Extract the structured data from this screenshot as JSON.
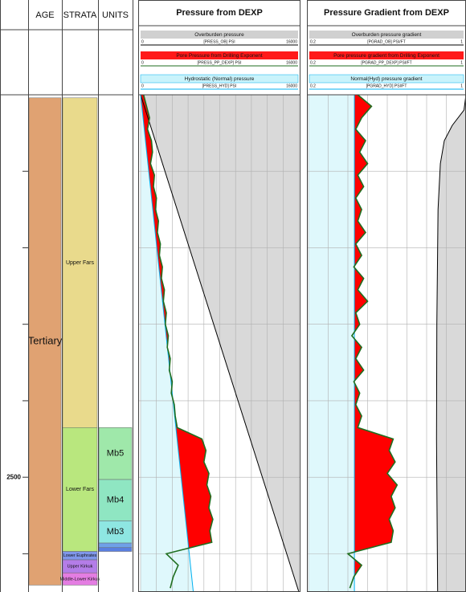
{
  "chart_data": {
    "type": "well-log",
    "ylim": [
      2000,
      2650
    ],
    "yticks": [
      {
        "value": 2100,
        "label": null
      },
      {
        "value": 2200,
        "label": null
      },
      {
        "value": 2300,
        "label": null
      },
      {
        "value": 2400,
        "label": null
      },
      {
        "value": 2500,
        "label": "2500"
      },
      {
        "value": 2600,
        "label": null
      }
    ],
    "age_title": "AGE",
    "strata_title": "STRATA",
    "units_title": "UNITS",
    "age": [
      {
        "name": "Tertiary",
        "top": 2004,
        "base": 2641,
        "color": "#e0a272"
      }
    ],
    "strata": [
      {
        "name": "Upper Fars",
        "top": 2004,
        "base": 2435,
        "color": "#e9da8c"
      },
      {
        "name": "Lower Fars",
        "top": 2435,
        "base": 2597,
        "color": "#b9e77e"
      },
      {
        "name": "Lower Euphrates",
        "top": 2597,
        "base": 2608,
        "color": "#7f96ea"
      },
      {
        "name": "Upper Kirkuk",
        "top": 2608,
        "base": 2625,
        "color": "#b47de8"
      },
      {
        "name": "Middle-Lower Kirkuk",
        "top": 2625,
        "base": 2641,
        "color": "#e47de2"
      }
    ],
    "units": [
      {
        "name": "Mb5",
        "top": 2435,
        "base": 2503,
        "color": "#9fe8aa"
      },
      {
        "name": "Mb4",
        "top": 2503,
        "base": 2557,
        "color": "#8fe6c2"
      },
      {
        "name": "Mb3",
        "top": 2557,
        "base": 2586,
        "color": "#8ee6e2"
      },
      {
        "name": null,
        "top": 2586,
        "base": 2592,
        "color": "#6fa0e8"
      },
      {
        "name": null,
        "top": 2592,
        "base": 2597,
        "color": "#5a7fe0"
      }
    ],
    "depths": [
      2000,
      2015,
      2030,
      2045,
      2060,
      2075,
      2090,
      2105,
      2120,
      2135,
      2150,
      2165,
      2180,
      2195,
      2210,
      2225,
      2240,
      2255,
      2270,
      2285,
      2300,
      2315,
      2330,
      2345,
      2360,
      2375,
      2390,
      2405,
      2420,
      2435,
      2450,
      2465,
      2480,
      2495,
      2510,
      2525,
      2540,
      2555,
      2570,
      2585,
      2600,
      2615,
      2630,
      2645
    ],
    "tracks": [
      {
        "title": "Pressure from DEXP",
        "xlim": [
          0,
          16000
        ],
        "xticks": [
          0,
          1600,
          3200,
          4800,
          6400,
          8000,
          9600,
          11200,
          12800,
          14400,
          16000
        ],
        "overburden": {
          "name": "Overburden pressure",
          "mnemonic": "[PRESS_OB] PSI",
          "color": "#000000",
          "fill": "#d9d9d9",
          "depths": [
            2000,
            2650
          ],
          "values": [
            0,
            16000
          ]
        },
        "pore": {
          "name": "Pore Pressure from Drilling Exponent",
          "mnemonic": "[PRESS_PP_DEXP] PSI",
          "color": "#1f6e1f",
          "fill": "#ff0000",
          "values": [
            300,
            600,
            900,
            700,
            1100,
            1200,
            1000,
            1400,
            1300,
            1600,
            1500,
            1800,
            1700,
            2000,
            1900,
            2200,
            2100,
            2400,
            2300,
            2600,
            2500,
            2800,
            2700,
            3000,
            2900,
            3200,
            3100,
            3400,
            3500,
            3700,
            6200,
            6600,
            6400,
            6900,
            6700,
            7100,
            6900,
            7300,
            7000,
            7200,
            2600,
            3800,
            3300,
            3000
          ]
        },
        "hydrostatic": {
          "name": "Hydrostatic (Normal) pressure",
          "mnemonic": "[PRESS_HYD] PSI",
          "color": "#00b0f0",
          "fill": "#dff8fc",
          "depths": [
            2000,
            2650
          ],
          "values": [
            0,
            5330
          ]
        }
      },
      {
        "title": "Pressure Gradient from DEXP",
        "xlim": [
          0.2,
          1
        ],
        "xticks": [
          0.2,
          0.3,
          0.4,
          0.5,
          0.6,
          0.7,
          0.8,
          0.9,
          1
        ],
        "overburden": {
          "name": "Overburden pressure gradient",
          "mnemonic": "[PGRAD_OB] PSI/FT",
          "color": "#000000",
          "fill": "#d9d9d9",
          "depths": [
            2000,
            2020,
            2040,
            2060,
            2090,
            2150,
            2300,
            2450,
            2650
          ],
          "values": [
            1.0,
            0.99,
            0.93,
            0.89,
            0.87,
            0.858,
            0.852,
            0.85,
            0.856
          ]
        },
        "pore": {
          "name": "Pore pressure gradient from Drilling Exponent",
          "mnemonic": "[PGRAD_PP_DEXP] PSI/FT",
          "color": "#1f6e1f",
          "fill": "#ff0000",
          "values": [
            0.45,
            0.52,
            0.47,
            0.44,
            0.49,
            0.46,
            0.5,
            0.45,
            0.48,
            0.44,
            0.47,
            0.45,
            0.49,
            0.44,
            0.47,
            0.43,
            0.48,
            0.45,
            0.5,
            0.44,
            0.46,
            0.42,
            0.47,
            0.44,
            0.48,
            0.43,
            0.46,
            0.44,
            0.47,
            0.45,
            0.63,
            0.61,
            0.64,
            0.6,
            0.65,
            0.62,
            0.64,
            0.61,
            0.63,
            0.62,
            0.4,
            0.47,
            0.43,
            0.41
          ]
        },
        "hydrostatic": {
          "name": "Normal(Hyd) pressure gradient",
          "mnemonic": "[PGRAD_HYD] PSI/FT",
          "color": "#00b0f0",
          "fill": "#dff8fc",
          "depths": [
            2000,
            2650
          ],
          "values": [
            0.433,
            0.433
          ]
        }
      }
    ]
  }
}
